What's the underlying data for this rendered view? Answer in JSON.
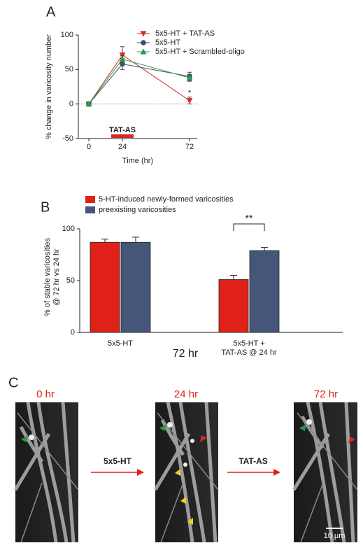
{
  "chart_data": [
    {
      "type": "line",
      "panel_label": "A",
      "xlabel": "Time (hr)",
      "ylabel": "% change in varicosity number",
      "x": [
        0,
        24,
        72
      ],
      "xlim": [
        -7.5,
        77.5
      ],
      "xticks": [
        0,
        24,
        72
      ],
      "ylim": [
        -50,
        100
      ],
      "yticks": [
        -50,
        0,
        50,
        100
      ],
      "series": [
        {
          "name": "5x5-HT + TAT-AS",
          "color": "#d42a20",
          "marker": "triangle-down",
          "values": [
            0,
            71,
            5
          ],
          "errors": [
            0,
            12,
            5
          ]
        },
        {
          "name": "5x5-HT",
          "color": "#3f4e6e",
          "marker": "circle",
          "values": [
            0,
            58,
            40
          ],
          "errors": [
            0,
            8,
            6
          ]
        },
        {
          "name": "5x5-HT + Scrambled-oligo",
          "color": "#2a9a4a",
          "marker": "triangle-up",
          "values": [
            0,
            65,
            38
          ],
          "errors": [
            0,
            5,
            5
          ]
        }
      ],
      "annotations": [
        "TAT-AS",
        "*"
      ]
    },
    {
      "type": "bar",
      "panel_label": "B",
      "xlabel": "72 hr",
      "ylabel": "% of stable varicosities\n@ 72 hr vs 24 hr",
      "categories": [
        "5x5-HT",
        "5x5-HT +\nTAT-AS @ 24 hr"
      ],
      "ylim": [
        0,
        100
      ],
      "yticks": [
        0,
        50,
        100
      ],
      "series": [
        {
          "name": "5-HT-induced newly-formed varicosities",
          "color": "#e0211a",
          "values": [
            87,
            51
          ],
          "errors": [
            3,
            4
          ]
        },
        {
          "name": "preexisting varicosities",
          "color": "#465679",
          "values": [
            87,
            79
          ],
          "errors": [
            5,
            3
          ]
        }
      ],
      "significance": "**"
    }
  ],
  "panel_c": {
    "label": "C",
    "timepoints": [
      "0 hr",
      "24 hr",
      "72 hr"
    ],
    "treatments": [
      "5x5-HT",
      "TAT-AS"
    ],
    "scale_bar": "10 μm"
  }
}
